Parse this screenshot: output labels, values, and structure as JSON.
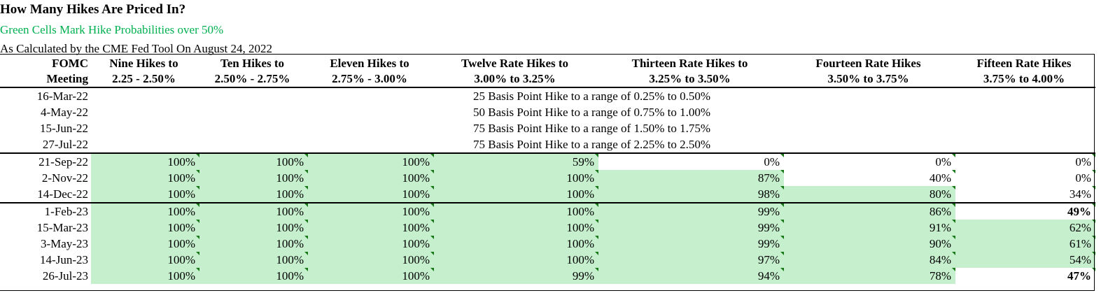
{
  "chart_data": {
    "type": "table",
    "title": "How Many Hikes Are Priced In?",
    "subtitle": "Green Cells Mark Hike Probabilities over 50%",
    "subtitle2": "As Calculated by the CME Fed Tool On August 24, 2022",
    "columns": [
      {
        "line1": "FOMC",
        "line2": "Meeting"
      },
      {
        "line1": "Nine Hikes to",
        "line2": "2.25 - 2.50%"
      },
      {
        "line1": "Ten Hikes to",
        "line2": "2.50% - 2.75%"
      },
      {
        "line1": "Eleven Hikes to",
        "line2": "2.75% - 3.00%"
      },
      {
        "line1": "Twelve Rate Hikes to",
        "line2": "3.00% to 3.25%"
      },
      {
        "line1": "Thirteen Rate Hikes to",
        "line2": "3.25% to 3.50%"
      },
      {
        "line1": "Fourteen Rate Hikes",
        "line2": "3.50% to 3.75%"
      },
      {
        "line1": "Fifteen Rate Hikes",
        "line2": "3.75% to 4.00%"
      }
    ],
    "past_meetings": [
      {
        "date": "16-Mar-22",
        "note": "25 Basis Point Hike to a range of 0.25% to 0.50%"
      },
      {
        "date": "4-May-22",
        "note": "50 Basis Point Hike to a range of 0.75% to 1.00%"
      },
      {
        "date": "15-Jun-22",
        "note": "75 Basis Point Hike to a range of 1.50% to 1.75%"
      },
      {
        "date": "27-Jul-22",
        "note": "75 Basis Point Hike to a range of 2.25% to 2.50%"
      }
    ],
    "rows_2022": [
      {
        "date": "21-Sep-22",
        "values": [
          "100%",
          "100%",
          "100%",
          "59%",
          "0%",
          "0%",
          "0%"
        ],
        "green": [
          true,
          true,
          true,
          true,
          false,
          false,
          false
        ],
        "bold": [
          false,
          false,
          false,
          false,
          false,
          false,
          false
        ]
      },
      {
        "date": "2-Nov-22",
        "values": [
          "100%",
          "100%",
          "100%",
          "100%",
          "87%",
          "40%",
          "0%"
        ],
        "green": [
          true,
          true,
          true,
          true,
          true,
          false,
          false
        ],
        "bold": [
          false,
          false,
          false,
          false,
          false,
          false,
          false
        ]
      },
      {
        "date": "14-Dec-22",
        "values": [
          "100%",
          "100%",
          "100%",
          "100%",
          "98%",
          "80%",
          "34%"
        ],
        "green": [
          true,
          true,
          true,
          true,
          true,
          true,
          false
        ],
        "bold": [
          false,
          false,
          false,
          false,
          false,
          false,
          false
        ]
      }
    ],
    "rows_2023": [
      {
        "date": "1-Feb-23",
        "values": [
          "100%",
          "100%",
          "100%",
          "100%",
          "99%",
          "86%",
          "49%"
        ],
        "green": [
          true,
          true,
          true,
          true,
          true,
          true,
          false
        ],
        "bold": [
          false,
          false,
          false,
          false,
          false,
          false,
          true
        ]
      },
      {
        "date": "15-Mar-23",
        "values": [
          "100%",
          "100%",
          "100%",
          "100%",
          "99%",
          "91%",
          "62%"
        ],
        "green": [
          true,
          true,
          true,
          true,
          true,
          true,
          true
        ],
        "bold": [
          false,
          false,
          false,
          false,
          false,
          false,
          false
        ]
      },
      {
        "date": "3-May-23",
        "values": [
          "100%",
          "100%",
          "100%",
          "100%",
          "99%",
          "90%",
          "61%"
        ],
        "green": [
          true,
          true,
          true,
          true,
          true,
          true,
          true
        ],
        "bold": [
          false,
          false,
          false,
          false,
          false,
          false,
          false
        ]
      },
      {
        "date": "14-Jun-23",
        "values": [
          "100%",
          "100%",
          "100%",
          "100%",
          "97%",
          "84%",
          "54%"
        ],
        "green": [
          true,
          true,
          true,
          true,
          true,
          true,
          true
        ],
        "bold": [
          false,
          false,
          false,
          false,
          false,
          false,
          false
        ]
      },
      {
        "date": "26-Jul-23",
        "values": [
          "100%",
          "100%",
          "100%",
          "99%",
          "94%",
          "78%",
          "47%"
        ],
        "green": [
          true,
          true,
          true,
          true,
          true,
          true,
          false
        ],
        "bold": [
          false,
          false,
          false,
          false,
          false,
          false,
          true
        ]
      }
    ],
    "colors": {
      "green_fill": "#c6efce",
      "subtitle_green": "#00b050"
    }
  }
}
